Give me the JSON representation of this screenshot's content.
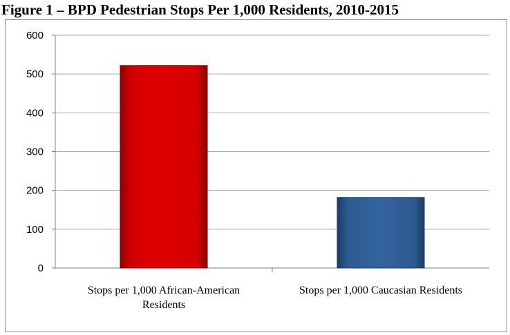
{
  "title": "Figure 1 – BPD Pedestrian Stops Per 1,000 Residents, 2010-2015",
  "colors": {
    "bar_red": "#cc0000",
    "bar_blue": "#2e5c94",
    "grid": "#a6a6a6"
  },
  "chart_data": {
    "type": "bar",
    "title": "Figure 1 – BPD Pedestrian Stops Per 1,000 Residents, 2010-2015",
    "categories": [
      [
        "Stops per 1,000 African-American",
        "Residents"
      ],
      [
        "Stops per 1,000 Caucasian Residents"
      ]
    ],
    "values": [
      522,
      182
    ],
    "bar_colors": [
      "#cc0000",
      "#2e5c94"
    ],
    "yticks": [
      "0",
      "100",
      "200",
      "300",
      "400",
      "500",
      "600"
    ],
    "ylim": [
      0,
      600
    ],
    "xlabel": "",
    "ylabel": "",
    "grid": true
  }
}
